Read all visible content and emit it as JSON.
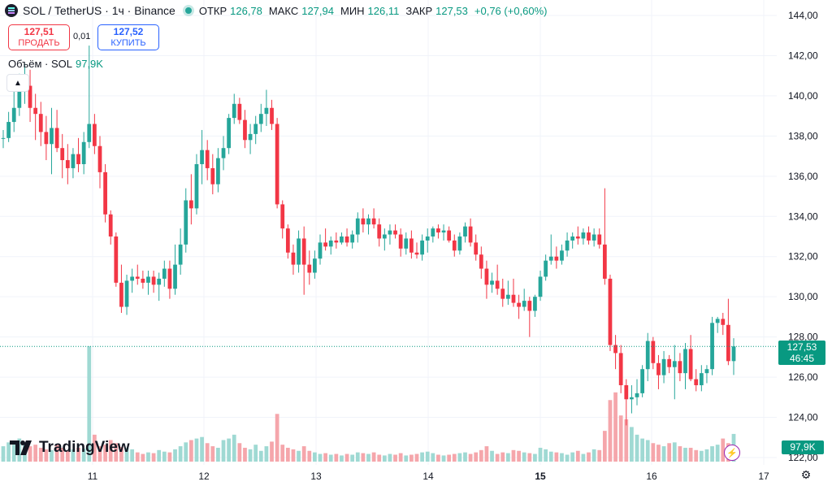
{
  "header": {
    "title": "SOL / TetherUS · 1ч · Binance",
    "ohlc": [
      {
        "key": "ОТКР",
        "value": "126,78"
      },
      {
        "key": "МАКС",
        "value": "127,94"
      },
      {
        "key": "МИН",
        "value": "126,11"
      },
      {
        "key": "ЗАКР",
        "value": "127,53"
      }
    ],
    "change": "+0,76 (+0,60%)"
  },
  "trade": {
    "sell_price": "127,51",
    "sell_label": "ПРОДАТЬ",
    "spread": "0,01",
    "buy_price": "127,52",
    "buy_label": "КУПИТЬ"
  },
  "volume_legend": {
    "label": "Объём · SOL",
    "value": "97,9K"
  },
  "logo_text": "TradingView",
  "price_tag": {
    "price": "127,53",
    "countdown": "46:45"
  },
  "volume_tag": "97,9K",
  "colors": {
    "up": "#26a69a",
    "down": "#f23645",
    "up_vol": "#9fd9d3",
    "down_vol": "#f5a6ab"
  },
  "chart_data": {
    "type": "candlestick",
    "title": "SOL / TetherUS · 1ч · Binance",
    "y_ticks": [
      "144,00",
      "142,00",
      "140,00",
      "138,00",
      "136,00",
      "134,00",
      "132,00",
      "130,00",
      "128,00",
      "126,00",
      "124,00",
      "122,00"
    ],
    "ylim": [
      122,
      144
    ],
    "x_ticks": [
      "11",
      "12",
      "13",
      "14",
      "15",
      "16",
      "17"
    ],
    "last_price": 127.53,
    "candles": [
      [
        137.9,
        138.3,
        137.4,
        137.9
      ],
      [
        137.9,
        139.2,
        137.7,
        138.7
      ],
      [
        138.7,
        140.3,
        138.2,
        139.4
      ],
      [
        139.4,
        141.1,
        139.0,
        140.2
      ],
      [
        140.2,
        141.6,
        139.6,
        140.5
      ],
      [
        140.5,
        141.3,
        138.7,
        139.4
      ],
      [
        139.4,
        140.1,
        137.8,
        139.1
      ],
      [
        139.1,
        139.7,
        137.5,
        138.2
      ],
      [
        138.2,
        139.0,
        136.8,
        137.6
      ],
      [
        137.6,
        139.4,
        136.1,
        138.4
      ],
      [
        138.4,
        139.3,
        137.2,
        137.4
      ],
      [
        137.4,
        138.1,
        135.9,
        136.8
      ],
      [
        136.8,
        137.6,
        135.6,
        136.4
      ],
      [
        136.4,
        137.4,
        135.9,
        137.1
      ],
      [
        137.1,
        137.9,
        136.2,
        136.6
      ],
      [
        136.6,
        138.2,
        136.1,
        137.7
      ],
      [
        137.7,
        142.5,
        137.4,
        138.6
      ],
      [
        138.6,
        139.1,
        137.1,
        137.5
      ],
      [
        137.5,
        138.0,
        135.4,
        136.2
      ],
      [
        136.2,
        136.6,
        133.7,
        134.1
      ],
      [
        134.1,
        134.3,
        132.6,
        133.0
      ],
      [
        133.0,
        133.2,
        130.5,
        130.7
      ],
      [
        130.7,
        131.6,
        129.2,
        129.5
      ],
      [
        129.5,
        131.1,
        129.1,
        130.8
      ],
      [
        130.8,
        131.4,
        130.2,
        131.0
      ],
      [
        131.0,
        131.6,
        130.6,
        130.9
      ],
      [
        130.9,
        131.3,
        130.4,
        130.7
      ],
      [
        130.7,
        131.3,
        130.1,
        131.0
      ],
      [
        131.0,
        131.3,
        130.2,
        130.6
      ],
      [
        130.6,
        131.2,
        129.8,
        130.9
      ],
      [
        130.9,
        131.8,
        130.5,
        131.4
      ],
      [
        131.4,
        131.8,
        129.9,
        130.4
      ],
      [
        130.4,
        132.6,
        130.1,
        131.6
      ],
      [
        131.6,
        133.4,
        131.1,
        132.6
      ],
      [
        132.6,
        135.4,
        132.2,
        134.8
      ],
      [
        134.8,
        136.1,
        133.6,
        134.4
      ],
      [
        134.4,
        137.1,
        134.1,
        136.6
      ],
      [
        136.6,
        138.3,
        135.6,
        137.3
      ],
      [
        137.3,
        137.8,
        135.8,
        136.4
      ],
      [
        136.4,
        137.1,
        135.1,
        135.6
      ],
      [
        135.6,
        137.4,
        135.2,
        136.9
      ],
      [
        136.9,
        138.0,
        136.3,
        137.4
      ],
      [
        137.4,
        139.1,
        137.1,
        138.9
      ],
      [
        138.9,
        140.1,
        138.6,
        139.6
      ],
      [
        139.6,
        139.9,
        138.6,
        138.8
      ],
      [
        138.8,
        139.3,
        137.4,
        137.8
      ],
      [
        137.8,
        138.6,
        137.1,
        138.1
      ],
      [
        138.1,
        139.0,
        137.6,
        138.6
      ],
      [
        138.6,
        139.6,
        138.2,
        139.1
      ],
      [
        139.1,
        140.3,
        138.5,
        139.4
      ],
      [
        139.4,
        139.8,
        138.3,
        138.6
      ],
      [
        138.6,
        138.9,
        134.4,
        134.6
      ],
      [
        134.6,
        134.8,
        132.9,
        133.4
      ],
      [
        133.4,
        133.6,
        131.9,
        132.2
      ],
      [
        132.2,
        132.6,
        131.1,
        131.6
      ],
      [
        131.6,
        133.3,
        131.2,
        132.9
      ],
      [
        132.9,
        133.5,
        130.1,
        131.6
      ],
      [
        131.6,
        132.3,
        130.6,
        131.2
      ],
      [
        131.2,
        132.3,
        130.9,
        131.9
      ],
      [
        131.9,
        133.1,
        131.6,
        132.7
      ],
      [
        132.7,
        133.4,
        132.3,
        132.5
      ],
      [
        132.5,
        133.0,
        132.1,
        132.8
      ],
      [
        132.8,
        133.2,
        132.4,
        132.7
      ],
      [
        132.7,
        133.2,
        132.6,
        133.0
      ],
      [
        133.0,
        133.4,
        132.5,
        132.7
      ],
      [
        132.7,
        133.3,
        132.4,
        133.1
      ],
      [
        133.1,
        134.2,
        132.7,
        133.9
      ],
      [
        133.9,
        134.4,
        133.2,
        133.6
      ],
      [
        133.6,
        134.1,
        133.1,
        133.9
      ],
      [
        133.9,
        134.4,
        133.4,
        133.6
      ],
      [
        133.6,
        133.9,
        132.5,
        132.9
      ],
      [
        132.9,
        133.4,
        132.3,
        133.1
      ],
      [
        133.1,
        133.6,
        132.6,
        133.3
      ],
      [
        133.3,
        133.6,
        132.9,
        133.1
      ],
      [
        133.1,
        133.4,
        132.0,
        132.4
      ],
      [
        132.4,
        133.2,
        132.1,
        132.9
      ],
      [
        132.9,
        133.3,
        131.9,
        132.2
      ],
      [
        132.2,
        132.7,
        131.9,
        132.1
      ],
      [
        132.1,
        133.1,
        131.8,
        132.8
      ],
      [
        132.8,
        133.4,
        132.2,
        133.0
      ],
      [
        133.0,
        133.5,
        132.7,
        133.4
      ],
      [
        133.4,
        133.6,
        132.9,
        133.2
      ],
      [
        133.2,
        133.6,
        132.8,
        133.3
      ],
      [
        133.3,
        133.5,
        132.7,
        132.8
      ],
      [
        132.8,
        133.1,
        132.0,
        132.3
      ],
      [
        132.3,
        133.2,
        132.1,
        133.0
      ],
      [
        133.0,
        133.7,
        132.7,
        133.5
      ],
      [
        133.5,
        133.9,
        132.5,
        132.7
      ],
      [
        132.7,
        133.1,
        131.8,
        132.1
      ],
      [
        132.1,
        132.5,
        130.9,
        131.4
      ],
      [
        131.4,
        131.8,
        129.9,
        130.6
      ],
      [
        130.6,
        131.2,
        130.2,
        130.8
      ],
      [
        130.8,
        131.6,
        130.1,
        130.4
      ],
      [
        130.4,
        130.9,
        129.5,
        129.9
      ],
      [
        129.9,
        130.8,
        129.6,
        130.1
      ],
      [
        130.1,
        130.9,
        129.5,
        129.7
      ],
      [
        129.7,
        130.1,
        128.9,
        129.5
      ],
      [
        129.5,
        130.4,
        129.3,
        129.8
      ],
      [
        129.8,
        130.0,
        128.0,
        129.3
      ],
      [
        129.3,
        130.1,
        129.0,
        130.0
      ],
      [
        130.0,
        131.3,
        129.8,
        131.0
      ],
      [
        131.0,
        132.1,
        130.8,
        131.8
      ],
      [
        131.8,
        133.1,
        131.6,
        132.0
      ],
      [
        132.0,
        132.5,
        131.4,
        131.8
      ],
      [
        131.8,
        132.6,
        131.6,
        132.3
      ],
      [
        132.3,
        133.2,
        132.0,
        132.8
      ],
      [
        132.8,
        133.2,
        132.4,
        133.0
      ],
      [
        133.0,
        133.5,
        132.6,
        132.9
      ],
      [
        132.9,
        133.4,
        132.6,
        133.2
      ],
      [
        133.2,
        133.5,
        132.6,
        132.8
      ],
      [
        132.8,
        133.4,
        132.5,
        133.1
      ],
      [
        133.1,
        133.4,
        132.4,
        132.6
      ],
      [
        132.6,
        135.4,
        130.6,
        130.9
      ],
      [
        130.9,
        131.1,
        127.3,
        127.6
      ],
      [
        127.6,
        128.1,
        126.4,
        127.2
      ],
      [
        127.2,
        127.6,
        125.2,
        125.6
      ],
      [
        125.6,
        125.9,
        123.6,
        124.9
      ],
      [
        124.9,
        125.6,
        124.2,
        125.0
      ],
      [
        125.0,
        125.9,
        124.6,
        125.2
      ],
      [
        125.2,
        126.6,
        125.0,
        126.4
      ],
      [
        126.4,
        128.2,
        125.8,
        127.8
      ],
      [
        127.8,
        128.0,
        126.4,
        126.7
      ],
      [
        126.7,
        127.1,
        125.4,
        126.1
      ],
      [
        126.1,
        127.3,
        125.7,
        126.9
      ],
      [
        126.9,
        127.1,
        126.2,
        126.5
      ],
      [
        126.5,
        127.6,
        124.9,
        126.8
      ],
      [
        126.8,
        127.2,
        125.8,
        126.2
      ],
      [
        126.2,
        127.7,
        125.4,
        127.4
      ],
      [
        127.4,
        128.1,
        125.8,
        125.9
      ],
      [
        125.9,
        126.4,
        125.3,
        125.6
      ],
      [
        125.6,
        126.6,
        125.3,
        126.2
      ],
      [
        126.2,
        126.6,
        125.7,
        126.4
      ],
      [
        126.4,
        129.0,
        126.1,
        128.7
      ],
      [
        128.7,
        129.0,
        128.2,
        128.9
      ],
      [
        128.9,
        129.2,
        128.1,
        128.6
      ],
      [
        128.6,
        129.9,
        126.6,
        126.8
      ],
      [
        126.8,
        127.94,
        126.11,
        127.53
      ]
    ],
    "volumes": [
      20,
      25,
      22,
      30,
      25,
      20,
      22,
      18,
      16,
      15,
      22,
      18,
      14,
      16,
      18,
      17,
      150,
      35,
      20,
      22,
      28,
      24,
      19,
      18,
      16,
      12,
      10,
      12,
      11,
      15,
      13,
      12,
      16,
      20,
      25,
      28,
      30,
      32,
      24,
      20,
      18,
      28,
      30,
      35,
      24,
      18,
      16,
      22,
      14,
      20,
      26,
      62,
      22,
      18,
      16,
      14,
      20,
      14,
      12,
      10,
      11,
      9,
      10,
      8,
      10,
      9,
      12,
      11,
      10,
      12,
      9,
      8,
      10,
      9,
      11,
      8,
      9,
      10,
      12,
      13,
      11,
      9,
      8,
      9,
      10,
      11,
      12,
      10,
      12,
      15,
      20,
      14,
      10,
      12,
      11,
      15,
      14,
      12,
      11,
      10,
      18,
      16,
      13,
      12,
      11,
      9,
      12,
      14,
      10,
      12,
      16,
      15,
      40,
      80,
      90,
      60,
      55,
      45,
      35,
      30,
      28,
      24,
      22,
      20,
      24,
      25,
      20,
      18,
      18,
      15,
      14,
      16,
      20,
      22,
      30,
      24,
      36
    ]
  }
}
